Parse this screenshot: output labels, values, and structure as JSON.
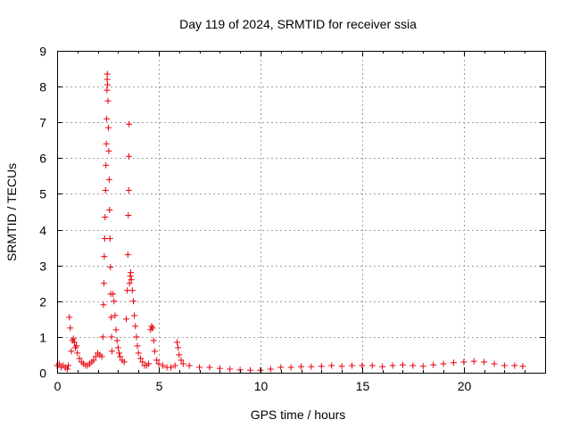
{
  "chart_data": {
    "type": "scatter",
    "title": "Day 119 of 2024, SRMTID for receiver ssia",
    "xlabel": "GPS time / hours",
    "ylabel": "SRMTID / TECUs",
    "xlim": [
      0,
      24
    ],
    "ylim": [
      0,
      9
    ],
    "xticks": [
      0,
      5,
      10,
      15,
      20
    ],
    "xtick_labels": [
      "0",
      "5",
      "10",
      "15",
      "20"
    ],
    "yticks": [
      0,
      1,
      2,
      3,
      4,
      5,
      6,
      7,
      8,
      9
    ],
    "ytick_labels": [
      "0",
      "1",
      "2",
      "3",
      "4",
      "5",
      "6",
      "7",
      "8",
      "9"
    ],
    "grid": true,
    "marker": "+",
    "color": "#e8000b",
    "series": [
      {
        "name": "SRMTID",
        "points": [
          [
            0.0,
            0.2
          ],
          [
            0.1,
            0.25
          ],
          [
            0.2,
            0.15
          ],
          [
            0.3,
            0.2
          ],
          [
            0.4,
            0.15
          ],
          [
            0.5,
            0.1
          ],
          [
            0.55,
            0.2
          ],
          [
            0.6,
            1.55
          ],
          [
            0.65,
            1.25
          ],
          [
            0.7,
            0.6
          ],
          [
            0.75,
            0.9
          ],
          [
            0.8,
            0.95
          ],
          [
            0.85,
            0.85
          ],
          [
            0.9,
            0.7
          ],
          [
            0.95,
            0.75
          ],
          [
            1.0,
            0.55
          ],
          [
            1.1,
            0.4
          ],
          [
            1.2,
            0.3
          ],
          [
            1.3,
            0.25
          ],
          [
            1.4,
            0.2
          ],
          [
            1.5,
            0.2
          ],
          [
            1.6,
            0.25
          ],
          [
            1.7,
            0.3
          ],
          [
            1.8,
            0.35
          ],
          [
            1.9,
            0.45
          ],
          [
            2.0,
            0.55
          ],
          [
            2.1,
            0.5
          ],
          [
            2.2,
            0.45
          ],
          [
            2.25,
            1.0
          ],
          [
            2.28,
            1.9
          ],
          [
            2.3,
            2.5
          ],
          [
            2.32,
            3.25
          ],
          [
            2.34,
            3.75
          ],
          [
            2.36,
            4.35
          ],
          [
            2.38,
            5.1
          ],
          [
            2.4,
            5.8
          ],
          [
            2.42,
            6.4
          ],
          [
            2.44,
            7.1
          ],
          [
            2.45,
            7.9
          ],
          [
            2.46,
            8.2
          ],
          [
            2.47,
            8.35
          ],
          [
            2.48,
            8.05
          ],
          [
            2.5,
            7.6
          ],
          [
            2.52,
            6.85
          ],
          [
            2.54,
            6.2
          ],
          [
            2.56,
            5.4
          ],
          [
            2.58,
            4.55
          ],
          [
            2.6,
            3.75
          ],
          [
            2.62,
            2.95
          ],
          [
            2.64,
            2.2
          ],
          [
            2.66,
            1.55
          ],
          [
            2.68,
            1.0
          ],
          [
            2.7,
            0.6
          ],
          [
            2.75,
            2.2
          ],
          [
            2.8,
            2.0
          ],
          [
            2.85,
            1.6
          ],
          [
            2.9,
            1.2
          ],
          [
            2.95,
            0.9
          ],
          [
            3.0,
            0.7
          ],
          [
            3.05,
            0.55
          ],
          [
            3.1,
            0.45
          ],
          [
            3.2,
            0.35
          ],
          [
            3.3,
            0.3
          ],
          [
            3.4,
            1.5
          ],
          [
            3.45,
            2.3
          ],
          [
            3.48,
            3.3
          ],
          [
            3.5,
            4.4
          ],
          [
            3.52,
            5.1
          ],
          [
            3.53,
            6.05
          ],
          [
            3.54,
            6.95
          ],
          [
            3.56,
            2.5
          ],
          [
            3.6,
            2.7
          ],
          [
            3.62,
            2.8
          ],
          [
            3.65,
            2.6
          ],
          [
            3.7,
            2.3
          ],
          [
            3.75,
            2.0
          ],
          [
            3.8,
            1.6
          ],
          [
            3.85,
            1.3
          ],
          [
            3.9,
            1.0
          ],
          [
            3.95,
            0.75
          ],
          [
            4.0,
            0.55
          ],
          [
            4.1,
            0.4
          ],
          [
            4.2,
            0.3
          ],
          [
            4.3,
            0.2
          ],
          [
            4.4,
            0.2
          ],
          [
            4.5,
            0.25
          ],
          [
            4.6,
            1.2
          ],
          [
            4.65,
            1.3
          ],
          [
            4.7,
            1.25
          ],
          [
            4.75,
            0.9
          ],
          [
            4.8,
            0.6
          ],
          [
            4.9,
            0.35
          ],
          [
            5.0,
            0.25
          ],
          [
            5.2,
            0.2
          ],
          [
            5.4,
            0.15
          ],
          [
            5.6,
            0.15
          ],
          [
            5.8,
            0.2
          ],
          [
            5.9,
            0.85
          ],
          [
            5.95,
            0.7
          ],
          [
            6.0,
            0.5
          ],
          [
            6.1,
            0.35
          ],
          [
            6.2,
            0.25
          ],
          [
            6.5,
            0.2
          ],
          [
            7.0,
            0.15
          ],
          [
            7.5,
            0.15
          ],
          [
            8.0,
            0.12
          ],
          [
            8.5,
            0.1
          ],
          [
            9.0,
            0.08
          ],
          [
            9.5,
            0.07
          ],
          [
            10.0,
            0.07
          ],
          [
            10.5,
            0.1
          ],
          [
            11.0,
            0.15
          ],
          [
            11.5,
            0.15
          ],
          [
            12.0,
            0.17
          ],
          [
            12.5,
            0.17
          ],
          [
            13.0,
            0.18
          ],
          [
            13.5,
            0.2
          ],
          [
            14.0,
            0.18
          ],
          [
            14.5,
            0.2
          ],
          [
            15.0,
            0.2
          ],
          [
            15.5,
            0.2
          ],
          [
            16.0,
            0.17
          ],
          [
            16.5,
            0.2
          ],
          [
            17.0,
            0.22
          ],
          [
            17.5,
            0.2
          ],
          [
            18.0,
            0.18
          ],
          [
            18.5,
            0.22
          ],
          [
            19.0,
            0.25
          ],
          [
            19.5,
            0.28
          ],
          [
            20.0,
            0.3
          ],
          [
            20.5,
            0.32
          ],
          [
            21.0,
            0.3
          ],
          [
            21.5,
            0.25
          ],
          [
            22.0,
            0.2
          ],
          [
            22.5,
            0.2
          ],
          [
            22.9,
            0.18
          ]
        ]
      }
    ]
  }
}
